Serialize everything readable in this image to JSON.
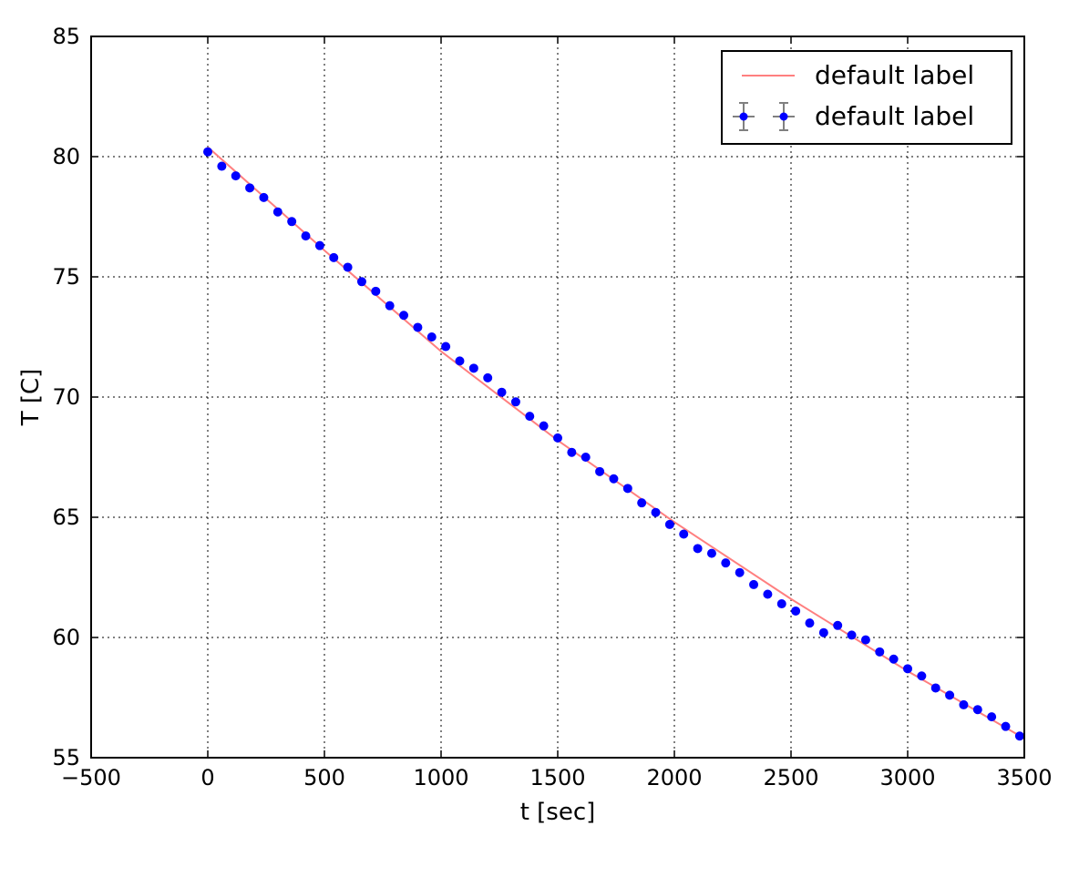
{
  "chart_data": {
    "type": "scatter",
    "title": "",
    "xlabel": "t [sec]",
    "ylabel": "T [C]",
    "xlim": [
      -500,
      3500
    ],
    "ylim": [
      55,
      85
    ],
    "x_ticks": [
      -500,
      0,
      500,
      1000,
      1500,
      2000,
      2500,
      3000,
      3500
    ],
    "y_ticks": [
      55,
      60,
      65,
      70,
      75,
      80,
      85
    ],
    "x_tick_labels": [
      "−500",
      "0",
      "500",
      "1000",
      "1500",
      "2000",
      "2500",
      "3000",
      "3500"
    ],
    "y_tick_labels": [
      "55",
      "60",
      "65",
      "70",
      "75",
      "80",
      "85"
    ],
    "grid": true,
    "legend_position": "top-right",
    "series": [
      {
        "name": "default label",
        "kind": "line",
        "color": "#ff7f7f",
        "x": [
          0,
          500,
          1000,
          1500,
          2000,
          2500,
          3000,
          3500
        ],
        "y": [
          80.4,
          76.1,
          71.9,
          68.2,
          64.8,
          61.6,
          58.6,
          55.8
        ]
      },
      {
        "name": "default label",
        "kind": "errorbar",
        "color": "#0000ff",
        "errorbar_color": "#808080",
        "x": [
          0,
          60,
          120,
          180,
          240,
          300,
          360,
          420,
          480,
          540,
          600,
          660,
          720,
          780,
          840,
          900,
          960,
          1020,
          1080,
          1140,
          1200,
          1260,
          1320,
          1380,
          1440,
          1500,
          1560,
          1620,
          1680,
          1740,
          1800,
          1860,
          1920,
          1980,
          2040,
          2100,
          2160,
          2220,
          2280,
          2340,
          2400,
          2460,
          2520,
          2580,
          2640,
          2700,
          2760,
          2820,
          2880,
          2940,
          3000,
          3060,
          3120,
          3180,
          3240,
          3300,
          3360,
          3420,
          3480
        ],
        "y": [
          80.2,
          79.6,
          79.2,
          78.7,
          78.3,
          77.7,
          77.3,
          76.7,
          76.3,
          75.8,
          75.4,
          74.8,
          74.4,
          73.8,
          73.4,
          72.9,
          72.5,
          72.1,
          71.5,
          71.2,
          70.8,
          70.2,
          69.8,
          69.2,
          68.8,
          68.3,
          67.7,
          67.5,
          66.9,
          66.6,
          66.2,
          65.6,
          65.2,
          64.7,
          64.3,
          63.7,
          63.5,
          63.1,
          62.7,
          62.2,
          61.8,
          61.4,
          61.1,
          60.6,
          60.2,
          60.5,
          60.1,
          59.9,
          59.4,
          59.1,
          58.7,
          58.4,
          57.9,
          57.6,
          57.2,
          57.0,
          56.7,
          56.3,
          55.9
        ]
      }
    ]
  }
}
